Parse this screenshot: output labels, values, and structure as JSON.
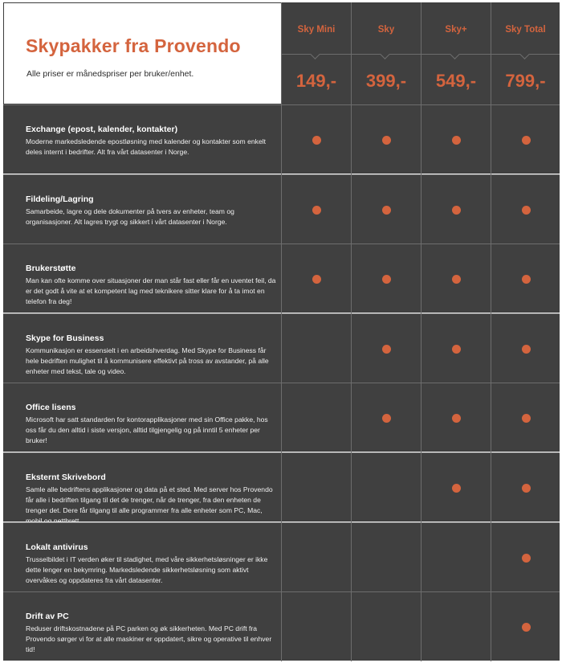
{
  "header": {
    "title": "Skypakker fra Provendo",
    "subtitle": "Alle priser er månedspriser per bruker/enhet."
  },
  "plans": [
    {
      "name": "Sky Mini",
      "price": "149,-"
    },
    {
      "name": "Sky",
      "price": "399,-"
    },
    {
      "name": "Sky+",
      "price": "549,-"
    },
    {
      "name": "Sky Total",
      "price": "799,-"
    }
  ],
  "features": [
    {
      "title": "Exchange (epost, kalender, kontakter)",
      "description": "Moderne markedsledende epostløsning med kalender og kontakter som enkelt deles internt i bedrifter. Alt fra vårt datasenter i Norge.",
      "included": [
        true,
        true,
        true,
        true
      ]
    },
    {
      "title": "Fildeling/Lagring",
      "description": "Samarbeide, lagre og dele dokumenter på tvers av enheter, team og organisasjoner. Alt lagres trygt og sikkert i vårt datasenter i Norge.",
      "included": [
        true,
        true,
        true,
        true
      ]
    },
    {
      "title": "Brukerstøtte",
      "description": "Man kan ofte komme over situasjoner der man står fast eller får en uventet feil, da er det godt å vite at et kompetent lag med teknikere sitter klare for å ta imot en telefon fra deg!",
      "included": [
        true,
        true,
        true,
        true
      ]
    },
    {
      "title": "Skype for Business",
      "description": "Kommunikasjon er essensielt i en arbeidshverdag. Med Skype for Business får hele bedriften mulighet til å kommunisere effektivt på tross av avstander, på alle enheter med tekst, tale og video.",
      "included": [
        false,
        true,
        true,
        true
      ]
    },
    {
      "title": "Office lisens",
      "description": "Microsoft har satt standarden for kontorapplikasjoner med sin Office pakke, hos oss får du den alltid i siste versjon, alltid tilgjengelig og på inntil 5 enheter per bruker!",
      "included": [
        false,
        true,
        true,
        true
      ]
    },
    {
      "title": "Eksternt Skrivebord",
      "description": "Samle alle bedriftens applikasjoner og data på et sted. Med server hos Provendo får alle i bedriften tilgang til det de trenger, når de trenger, fra den enheten de trenger det. Dere får tilgang til alle programmer fra alle enheter som PC, Mac, mobil og nettbrett.",
      "included": [
        false,
        false,
        true,
        true
      ]
    },
    {
      "title": "Lokalt antivirus",
      "description": "Trusselbildet i IT verden øker til stadighet, med våre sikkerhetsløsninger er ikke dette lenger en bekymring. Markedsledende sikkerhetsløsning som aktivt overvåkes og oppdateres fra vårt datasenter.",
      "included": [
        false,
        false,
        false,
        true
      ]
    },
    {
      "title": "Drift av PC",
      "description": "Reduser driftskostnadene på PC parken og øk sikkerheten. Med PC drift fra Provendo sørger vi for at alle maskiner er oppdatert, sikre og operative til enhver tid!",
      "included": [
        false,
        false,
        false,
        true
      ]
    }
  ],
  "colors": {
    "accent": "#d4643e",
    "background": "#404040",
    "grid": "#6d6d6d"
  }
}
